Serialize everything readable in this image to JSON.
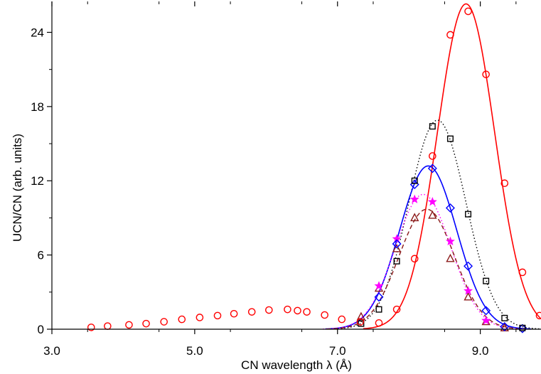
{
  "chart_data": {
    "type": "scatter",
    "xlabel": "CN wavelength λ (Å)",
    "ylabel": "UCN/CN (arb. units)",
    "xlim": [
      3.0,
      9.85
    ],
    "ylim": [
      0,
      26.5
    ],
    "xticks": [
      "3.0",
      "5.0",
      "7.0",
      "9.0"
    ],
    "yticks": [
      "0",
      "6",
      "12",
      "18",
      "24"
    ],
    "grid": false,
    "series": [
      {
        "marker": "circle",
        "color": "#ff0000",
        "curve": "solid",
        "x": [
          3.55,
          3.78,
          4.08,
          4.32,
          4.57,
          4.82,
          5.07,
          5.32,
          5.55,
          5.8,
          6.04,
          6.3,
          6.44,
          6.57,
          6.82,
          7.06,
          7.32,
          7.58,
          7.83,
          8.08,
          8.33,
          8.58,
          8.83,
          9.08,
          9.34,
          9.59,
          9.83
        ],
        "y": [
          0.15,
          0.25,
          0.35,
          0.45,
          0.6,
          0.8,
          0.95,
          1.1,
          1.25,
          1.4,
          1.55,
          1.6,
          1.5,
          1.4,
          1.15,
          0.8,
          0.6,
          0.5,
          1.6,
          5.7,
          14.0,
          23.8,
          25.7,
          20.6,
          11.8,
          4.6,
          1.1
        ],
        "fit": {
          "peak": 26.3,
          "center": 8.8,
          "sigma": 0.4
        }
      },
      {
        "marker": "square",
        "color": "#000000",
        "curve": "dotted",
        "x": [
          7.33,
          7.58,
          7.83,
          8.08,
          8.33,
          8.58,
          8.83,
          9.08,
          9.34,
          9.59
        ],
        "y": [
          0.45,
          1.6,
          5.5,
          12.0,
          16.4,
          15.4,
          9.3,
          3.9,
          0.9,
          0.1
        ],
        "fit": {
          "peak": 16.9,
          "center": 8.4,
          "sigma": 0.4
        }
      },
      {
        "marker": "diamond",
        "color": "#0000ff",
        "curve": "solid",
        "x": [
          7.58,
          7.83,
          8.08,
          8.33,
          8.58,
          8.83,
          9.08,
          9.34,
          9.59
        ],
        "y": [
          2.6,
          6.9,
          11.7,
          13.0,
          9.8,
          5.1,
          1.5,
          0.2,
          0.05
        ],
        "fit": {
          "peak": 13.2,
          "center": 8.27,
          "sigma": 0.4
        }
      },
      {
        "marker": "star",
        "color": "#ff00ff",
        "curve": "dotted",
        "x": [
          7.58,
          7.83,
          8.08,
          8.33,
          8.58,
          8.83,
          9.08
        ],
        "y": [
          3.5,
          7.3,
          10.5,
          10.3,
          7.1,
          3.1,
          0.7
        ],
        "fit": {
          "peak": 10.9,
          "center": 8.2,
          "sigma": 0.39
        }
      },
      {
        "marker": "triangle",
        "color": "#8b1a1a",
        "curve": "dashed",
        "x": [
          7.33,
          7.58,
          7.83,
          8.08,
          8.33,
          8.58,
          8.83,
          9.08,
          9.34
        ],
        "y": [
          1.0,
          3.3,
          6.5,
          9.0,
          9.2,
          5.7,
          2.6,
          0.6,
          0.1
        ],
        "fit": {
          "peak": 9.7,
          "center": 8.25,
          "sigma": 0.39
        }
      }
    ]
  }
}
